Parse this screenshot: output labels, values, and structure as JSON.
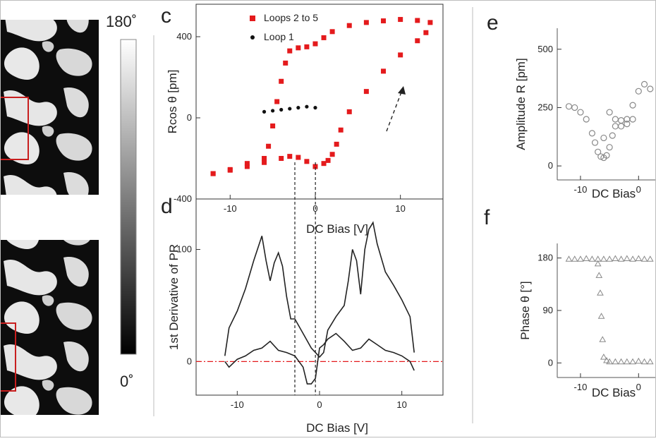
{
  "colorbar": {
    "max_label": "180˚",
    "min_label": "0˚"
  },
  "panel_labels": {
    "c": "c",
    "d": "d",
    "e": "e",
    "f": "f"
  },
  "chart_data": [
    {
      "id": "c",
      "type": "scatter",
      "xlabel": "DC Bias [V]",
      "ylabel": "Rcos θ [pm]",
      "xlim": [
        -14,
        15
      ],
      "ylim": [
        -400,
        560
      ],
      "xticks": [
        -10,
        0,
        10
      ],
      "xtick_labels": [
        "-10",
        "0",
        "10"
      ],
      "yticks": [
        -400,
        0,
        400
      ],
      "legend": {
        "position": "top-left",
        "entries": [
          "Loops 2 to 5",
          "Loop 1"
        ]
      },
      "series": [
        {
          "name": "Loops 2 to 5",
          "color": "#e41a1c",
          "marker": "square",
          "x": [
            -12,
            -10,
            -8,
            -6,
            -5.5,
            -5,
            -4.5,
            -4,
            -3.5,
            -3,
            -2,
            -1,
            0,
            1,
            2,
            4,
            6,
            8,
            10,
            12,
            13.5,
            13,
            12,
            10,
            8,
            6,
            4,
            3,
            2.5,
            2,
            1.5,
            1,
            0,
            -1,
            -2,
            -3,
            -4,
            -6,
            -8,
            -10,
            -12
          ],
          "y": [
            -275,
            -255,
            -225,
            -200,
            -140,
            -40,
            80,
            180,
            270,
            330,
            345,
            350,
            365,
            395,
            425,
            455,
            470,
            478,
            485,
            480,
            470,
            420,
            380,
            310,
            230,
            130,
            30,
            -60,
            -130,
            -180,
            -210,
            -225,
            -240,
            -215,
            -195,
            -190,
            -200,
            -220,
            -240,
            -258,
            -275
          ]
        },
        {
          "name": "Loop 1",
          "color": "#111111",
          "marker": "dot",
          "x": [
            -6,
            -5,
            -4,
            -3,
            -2,
            -1,
            0
          ],
          "y": [
            30,
            35,
            40,
            45,
            50,
            55,
            50
          ]
        }
      ],
      "annotations": [
        "dashed arrow near x≈5"
      ]
    },
    {
      "id": "d",
      "type": "line",
      "xlabel": "DC Bias [V]",
      "ylabel": "1st Derivative of PR",
      "xlim": [
        -15,
        15
      ],
      "ylim": [
        -30,
        145
      ],
      "xticks": [
        -10,
        0,
        10
      ],
      "xtick_labels": [
        "-10",
        "0",
        "10"
      ],
      "yticks": [
        0,
        100
      ],
      "reference_line": {
        "y": 0,
        "color": "#e41a1c",
        "style": "dash-dot"
      },
      "vertical_lines": [
        -3,
        -0.5
      ],
      "series": [
        {
          "color": "#222222",
          "x": [
            -11.5,
            -11,
            -10,
            -9,
            -8,
            -7,
            -6.5,
            -6,
            -5.5,
            -5,
            -4.5,
            -4,
            -3.5,
            -3,
            -2,
            -1,
            -0.5,
            0,
            0.5,
            1,
            2,
            3,
            3.5,
            4,
            4.5,
            5,
            5.5,
            6,
            6.5,
            7,
            8,
            9,
            10,
            11,
            11.5
          ],
          "y": [
            5,
            30,
            45,
            65,
            90,
            112,
            90,
            72,
            88,
            97,
            85,
            58,
            38,
            38,
            25,
            12,
            8,
            4,
            8,
            28,
            40,
            50,
            72,
            100,
            90,
            60,
            100,
            118,
            124,
            105,
            80,
            68,
            55,
            40,
            8
          ]
        },
        {
          "color": "#222222",
          "x": [
            -11.5,
            -11,
            -10,
            -9,
            -8,
            -7,
            -6,
            -5,
            -4,
            -3,
            -2,
            -1.5,
            -1,
            -0.5,
            0,
            0.5,
            1,
            2,
            3,
            4,
            5,
            6,
            7,
            8,
            9,
            10,
            11,
            11.5
          ],
          "y": [
            0,
            -5,
            2,
            5,
            10,
            12,
            18,
            10,
            8,
            5,
            -5,
            -20,
            -20,
            -15,
            12,
            15,
            20,
            25,
            18,
            10,
            12,
            20,
            15,
            10,
            8,
            5,
            0,
            -8
          ]
        }
      ]
    },
    {
      "id": "e",
      "type": "scatter",
      "xlabel": "DC Bias",
      "ylabel": "Amplitude R [pm]",
      "xlim": [
        -14,
        3
      ],
      "ylim": [
        -60,
        590
      ],
      "xticks": [
        -10,
        0
      ],
      "xtick_labels": [
        "-10",
        "0"
      ],
      "yticks": [
        0,
        250,
        500
      ],
      "series": [
        {
          "color": "#888888",
          "marker": "open-circle",
          "x": [
            -12,
            -11,
            -10,
            -9,
            -8,
            -7.5,
            -7,
            -6.5,
            -6,
            -5.5,
            -5,
            -4.5,
            -4,
            -3,
            -2,
            -1,
            0,
            1,
            2,
            -1,
            -2,
            -3,
            -4,
            -5,
            -6
          ],
          "y": [
            255,
            250,
            230,
            200,
            140,
            100,
            60,
            40,
            35,
            45,
            80,
            130,
            170,
            195,
            180,
            200,
            320,
            350,
            330,
            260,
            200,
            170,
            200,
            230,
            120
          ]
        }
      ]
    },
    {
      "id": "f",
      "type": "scatter",
      "xlabel": "DC Bias",
      "ylabel": "Phase θ [°]",
      "xlim": [
        -14,
        3
      ],
      "ylim": [
        -25,
        205
      ],
      "xticks": [
        -10,
        0
      ],
      "xtick_labels": [
        "-10",
        "0"
      ],
      "yticks": [
        0,
        90,
        180
      ],
      "series": [
        {
          "color": "#888888",
          "marker": "open-triangle",
          "x": [
            -12,
            -11,
            -10,
            -9,
            -8,
            -7,
            -6,
            -5,
            -4,
            -3,
            -2,
            -1,
            0,
            1,
            2
          ],
          "y": [
            178,
            178,
            178,
            179,
            178,
            178,
            178,
            178,
            179,
            178,
            179,
            178,
            179,
            178,
            178
          ]
        },
        {
          "color": "#888888",
          "marker": "open-triangle",
          "x": [
            -7,
            -6.8,
            -6.6,
            -6.4,
            -6.2,
            -6,
            -5.5,
            -5,
            -4,
            -3,
            -2,
            -1,
            0,
            1,
            2
          ],
          "y": [
            170,
            150,
            120,
            80,
            40,
            10,
            4,
            2,
            2,
            2,
            2,
            2,
            3,
            2,
            2
          ]
        }
      ]
    }
  ]
}
